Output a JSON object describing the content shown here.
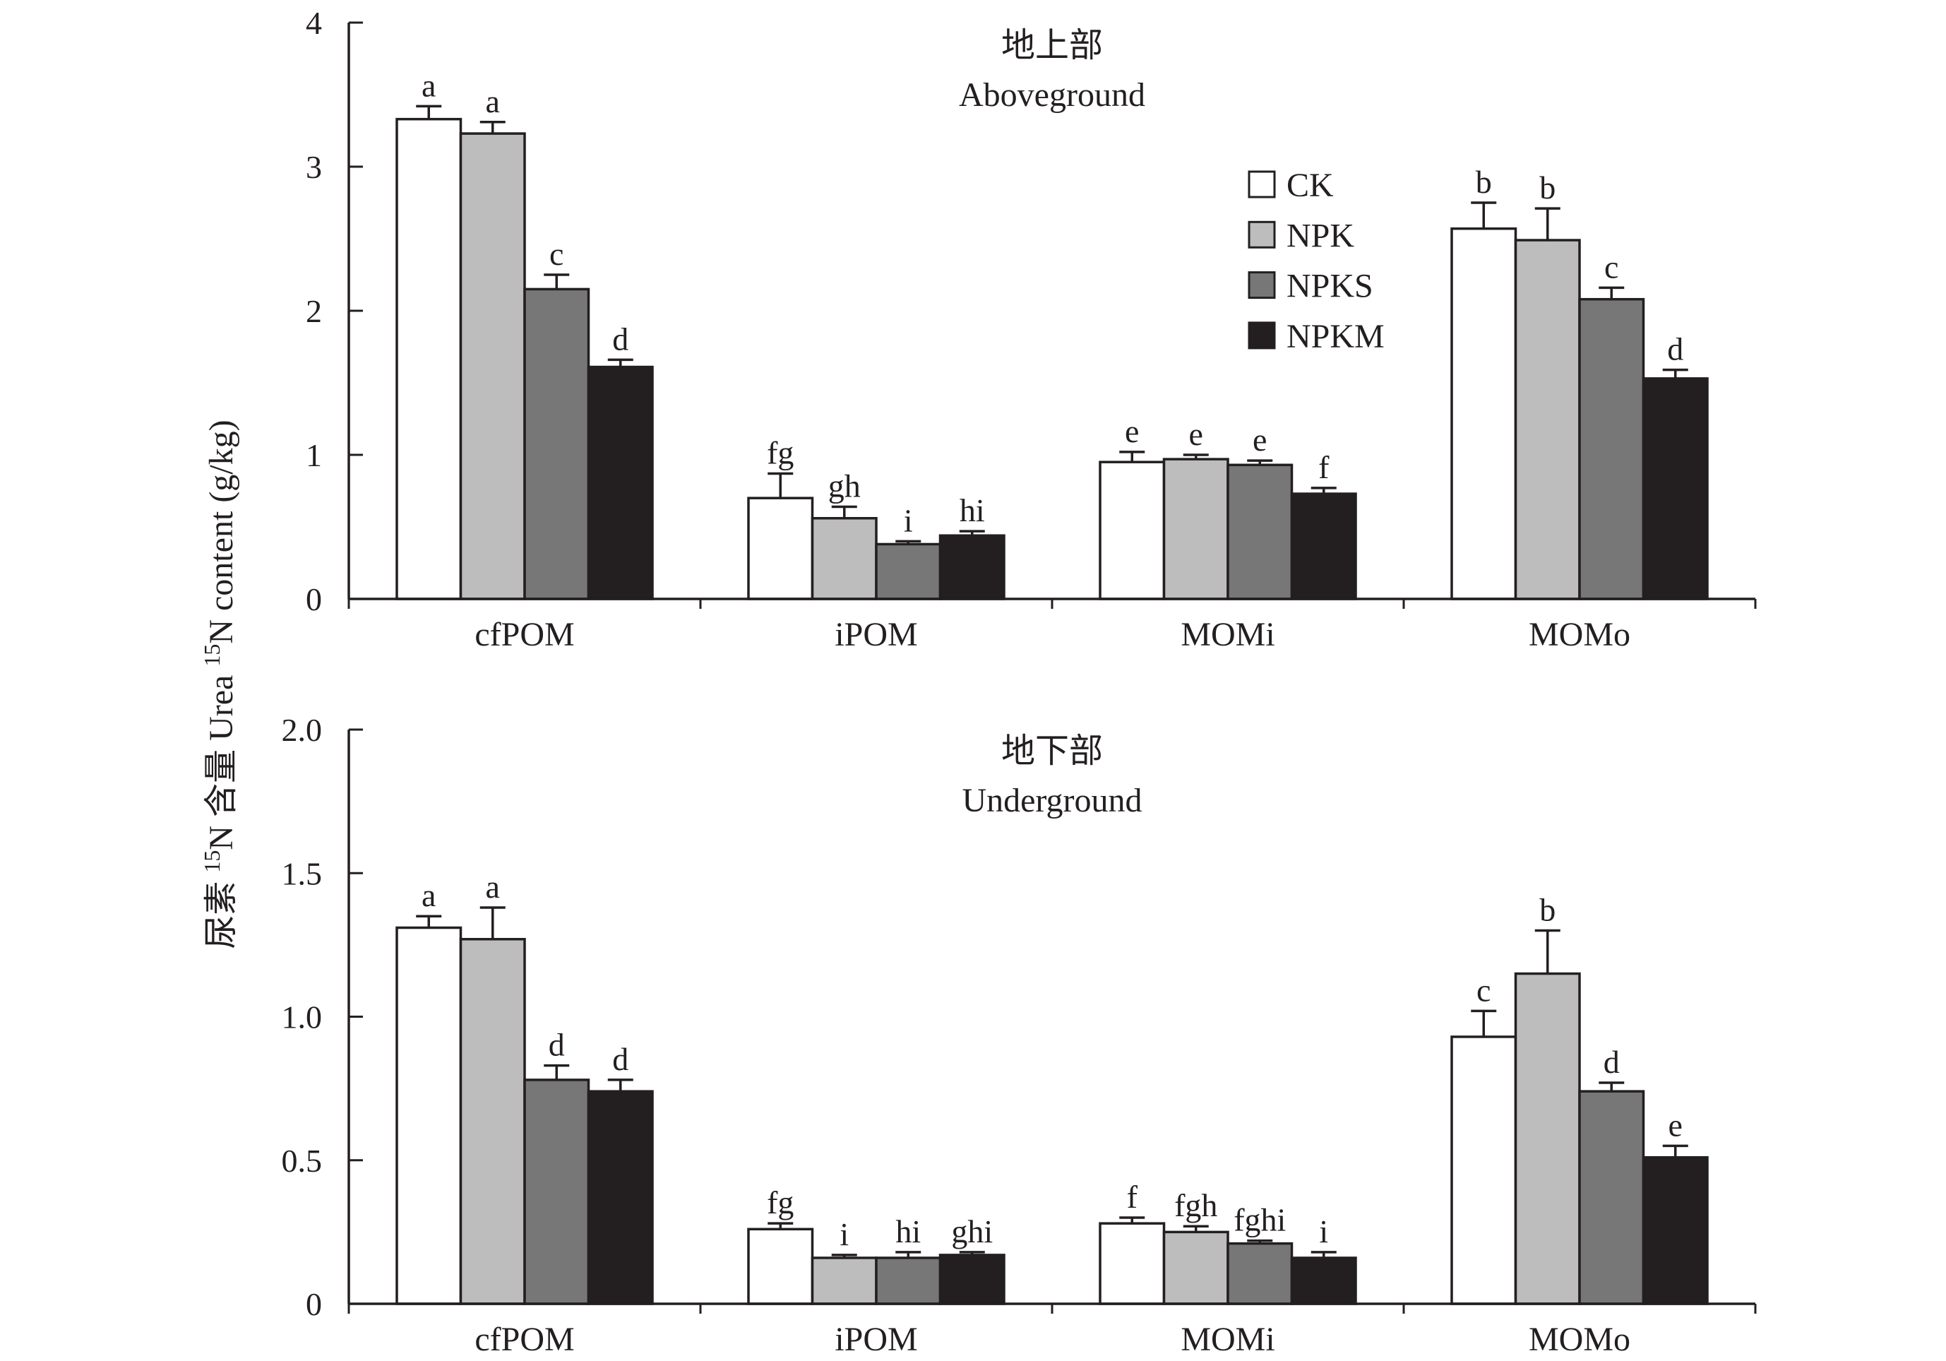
{
  "y_axis_label": [
    {
      "text": "尿素 "
    },
    {
      "text": "15",
      "sup": true
    },
    {
      "text": "N 含量 Urea "
    },
    {
      "text": "15",
      "sup": true
    },
    {
      "text": "N content (g/kg)"
    }
  ],
  "chart_data": [
    {
      "type": "bar",
      "title": "地上部",
      "subtitle": "Aboveground",
      "categories": [
        "cfPOM",
        "iPOM",
        "MOMi",
        "MOMo"
      ],
      "ylim": [
        0,
        4
      ],
      "yticks": [
        0,
        1,
        2,
        3,
        4
      ],
      "ytick_labels": [
        "0",
        "1",
        "2",
        "3",
        "4"
      ],
      "series": [
        {
          "name": "CK",
          "color": "#ffffff",
          "values": [
            3.33,
            0.7,
            0.95,
            2.57
          ],
          "error": [
            0.09,
            0.17,
            0.07,
            0.18
          ],
          "letters": [
            "a",
            "fg",
            "e",
            "b"
          ]
        },
        {
          "name": "NPK",
          "color": "#bdbdbd",
          "values": [
            3.23,
            0.56,
            0.97,
            2.49
          ],
          "error": [
            0.08,
            0.08,
            0.03,
            0.22
          ],
          "letters": [
            "a",
            "gh",
            "e",
            "b"
          ]
        },
        {
          "name": "NPKS",
          "color": "#777777",
          "values": [
            2.15,
            0.38,
            0.93,
            2.08
          ],
          "error": [
            0.1,
            0.02,
            0.03,
            0.08
          ],
          "letters": [
            "c",
            "i",
            "e",
            "c"
          ]
        },
        {
          "name": "NPKM",
          "color": "#231f20",
          "values": [
            1.61,
            0.44,
            0.73,
            1.53
          ],
          "error": [
            0.05,
            0.03,
            0.04,
            0.06
          ],
          "letters": [
            "d",
            "hi",
            "f",
            "d"
          ]
        }
      ]
    },
    {
      "type": "bar",
      "title": "地下部",
      "subtitle": "Underground",
      "categories": [
        "cfPOM",
        "iPOM",
        "MOMi",
        "MOMo"
      ],
      "ylim": [
        0,
        2.0
      ],
      "yticks": [
        0,
        0.5,
        1.0,
        1.5,
        2.0
      ],
      "ytick_labels": [
        "0",
        "0.5",
        "1.0",
        "1.5",
        "2.0"
      ],
      "series": [
        {
          "name": "CK",
          "color": "#ffffff",
          "values": [
            1.31,
            0.26,
            0.28,
            0.93
          ],
          "error": [
            0.04,
            0.02,
            0.02,
            0.09
          ],
          "letters": [
            "a",
            "fg",
            "f",
            "c"
          ]
        },
        {
          "name": "NPK",
          "color": "#bdbdbd",
          "values": [
            1.27,
            0.16,
            0.25,
            1.15
          ],
          "error": [
            0.11,
            0.01,
            0.02,
            0.15
          ],
          "letters": [
            "a",
            "i",
            "fgh",
            "b"
          ]
        },
        {
          "name": "NPKS",
          "color": "#777777",
          "values": [
            0.78,
            0.16,
            0.21,
            0.74
          ],
          "error": [
            0.05,
            0.02,
            0.01,
            0.03
          ],
          "letters": [
            "d",
            "hi",
            "fghi",
            "d"
          ]
        },
        {
          "name": "NPKM",
          "color": "#231f20",
          "values": [
            0.74,
            0.17,
            0.16,
            0.51
          ],
          "error": [
            0.04,
            0.01,
            0.02,
            0.04
          ],
          "letters": [
            "d",
            "ghi",
            "i",
            "e"
          ]
        }
      ]
    }
  ]
}
